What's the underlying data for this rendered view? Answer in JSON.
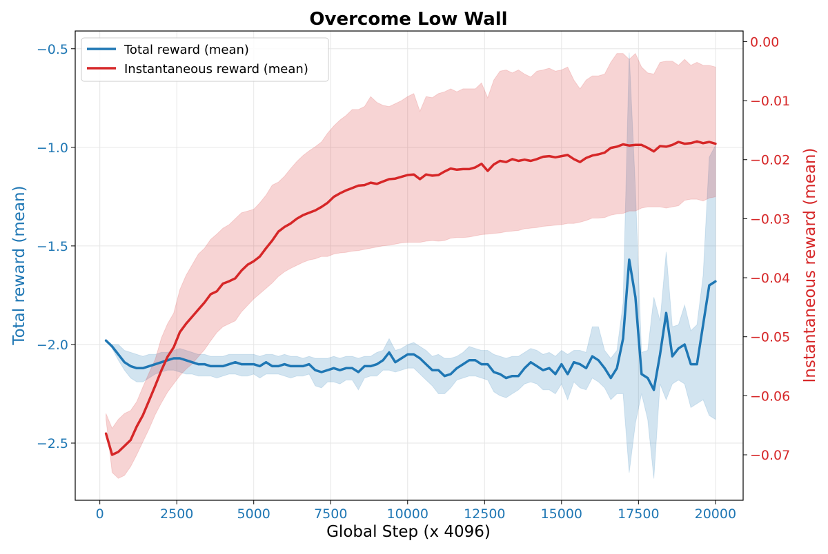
{
  "chart_data": {
    "type": "line",
    "title": "Overcome Low Wall",
    "xlabel": "Global Step (x 4096)",
    "ylabel_left": "Total reward (mean)",
    "ylabel_right": "Instantaneous reward (mean)",
    "xlim": [
      -800,
      20900
    ],
    "ylim_left": [
      -2.79,
      -0.41
    ],
    "ylim_right": [
      -0.0777,
      0.0018
    ],
    "x_ticks": [
      0,
      2500,
      5000,
      7500,
      10000,
      12500,
      15000,
      17500,
      20000
    ],
    "x_tick_labels": [
      "0",
      "2500",
      "5000",
      "7500",
      "10000",
      "12500",
      "15000",
      "17500",
      "20000"
    ],
    "y_ticks_left": [
      -0.5,
      -1.0,
      -1.5,
      -2.0,
      -2.5
    ],
    "y_tick_labels_left": [
      "−0.5",
      "−1.0",
      "−1.5",
      "−2.0",
      "−2.5"
    ],
    "y_ticks_right": [
      0.0,
      -0.01,
      -0.02,
      -0.03,
      -0.04,
      -0.05,
      -0.06,
      -0.07
    ],
    "y_tick_labels_right": [
      "0.00",
      "−0.01",
      "−0.02",
      "−0.03",
      "−0.04",
      "−0.05",
      "−0.06",
      "−0.07"
    ],
    "grid": true,
    "legend_position": "top-left",
    "colors": {
      "total": "#1f77b4",
      "instant": "#d62728"
    },
    "series": [
      {
        "name": "Total reward (mean)",
        "axis": "left",
        "x": [
          200,
          400,
          600,
          800,
          1000,
          1200,
          1400,
          1600,
          1800,
          2000,
          2200,
          2400,
          2600,
          2800,
          3000,
          3200,
          3400,
          3600,
          3800,
          4000,
          4200,
          4400,
          4600,
          4800,
          5000,
          5200,
          5400,
          5600,
          5800,
          6000,
          6200,
          6400,
          6600,
          6800,
          7000,
          7200,
          7400,
          7600,
          7800,
          8000,
          8200,
          8400,
          8600,
          8800,
          9000,
          9200,
          9400,
          9600,
          9800,
          10000,
          10200,
          10400,
          10600,
          10800,
          11000,
          11200,
          11400,
          11600,
          11800,
          12000,
          12200,
          12400,
          12600,
          12800,
          13000,
          13200,
          13400,
          13600,
          13800,
          14000,
          14200,
          14400,
          14600,
          14800,
          15000,
          15200,
          15400,
          15600,
          15800,
          16000,
          16200,
          16400,
          16600,
          16800,
          17000,
          17200,
          17400,
          17600,
          17800,
          18000,
          18200,
          18400,
          18600,
          18800,
          19000,
          19200,
          19400,
          19600,
          19800,
          20000
        ],
        "values": [
          -1.98,
          -2.01,
          -2.05,
          -2.09,
          -2.11,
          -2.12,
          -2.12,
          -2.11,
          -2.1,
          -2.09,
          -2.08,
          -2.07,
          -2.07,
          -2.08,
          -2.09,
          -2.1,
          -2.1,
          -2.11,
          -2.11,
          -2.11,
          -2.1,
          -2.09,
          -2.1,
          -2.1,
          -2.1,
          -2.11,
          -2.09,
          -2.11,
          -2.11,
          -2.1,
          -2.11,
          -2.11,
          -2.11,
          -2.1,
          -2.13,
          -2.14,
          -2.13,
          -2.12,
          -2.13,
          -2.12,
          -2.12,
          -2.14,
          -2.11,
          -2.11,
          -2.1,
          -2.08,
          -2.04,
          -2.09,
          -2.07,
          -2.05,
          -2.05,
          -2.07,
          -2.1,
          -2.13,
          -2.13,
          -2.16,
          -2.15,
          -2.12,
          -2.1,
          -2.08,
          -2.08,
          -2.1,
          -2.1,
          -2.14,
          -2.15,
          -2.17,
          -2.16,
          -2.16,
          -2.12,
          -2.09,
          -2.11,
          -2.13,
          -2.12,
          -2.15,
          -2.1,
          -2.15,
          -2.09,
          -2.1,
          -2.12,
          -2.06,
          -2.08,
          -2.12,
          -2.17,
          -2.12,
          -1.97,
          -1.57,
          -1.76,
          -2.15,
          -2.17,
          -2.23,
          -2.05,
          -1.84,
          -2.06,
          -2.02,
          -2.0,
          -2.1,
          -2.1,
          -1.9,
          -1.7,
          -1.68
        ],
        "lower": [
          -1.98,
          -2.02,
          -2.08,
          -2.13,
          -2.17,
          -2.19,
          -2.19,
          -2.17,
          -2.15,
          -2.14,
          -2.13,
          -2.13,
          -2.14,
          -2.15,
          -2.15,
          -2.16,
          -2.16,
          -2.16,
          -2.17,
          -2.16,
          -2.15,
          -2.15,
          -2.16,
          -2.16,
          -2.15,
          -2.17,
          -2.15,
          -2.15,
          -2.15,
          -2.16,
          -2.17,
          -2.16,
          -2.16,
          -2.15,
          -2.21,
          -2.22,
          -2.19,
          -2.19,
          -2.2,
          -2.18,
          -2.18,
          -2.23,
          -2.17,
          -2.16,
          -2.16,
          -2.13,
          -2.13,
          -2.14,
          -2.13,
          -2.12,
          -2.12,
          -2.15,
          -2.18,
          -2.21,
          -2.25,
          -2.25,
          -2.22,
          -2.18,
          -2.17,
          -2.16,
          -2.16,
          -2.17,
          -2.18,
          -2.24,
          -2.26,
          -2.27,
          -2.25,
          -2.23,
          -2.2,
          -2.19,
          -2.2,
          -2.23,
          -2.23,
          -2.25,
          -2.2,
          -2.28,
          -2.19,
          -2.22,
          -2.23,
          -2.17,
          -2.19,
          -2.22,
          -2.28,
          -2.25,
          -2.25,
          -2.65,
          -2.4,
          -2.25,
          -2.38,
          -2.68,
          -2.2,
          -2.28,
          -2.2,
          -2.18,
          -2.2,
          -2.32,
          -2.3,
          -2.28,
          -2.36,
          -2.38
        ],
        "upper": [
          -1.98,
          -2.0,
          -2.0,
          -2.03,
          -2.04,
          -2.05,
          -2.06,
          -2.05,
          -2.05,
          -2.04,
          -2.04,
          -2.03,
          -2.02,
          -2.03,
          -2.04,
          -2.05,
          -2.05,
          -2.06,
          -2.06,
          -2.06,
          -2.05,
          -2.05,
          -2.05,
          -2.05,
          -2.05,
          -2.06,
          -2.05,
          -2.05,
          -2.06,
          -2.05,
          -2.06,
          -2.06,
          -2.07,
          -2.06,
          -2.07,
          -2.07,
          -2.07,
          -2.06,
          -2.07,
          -2.06,
          -2.06,
          -2.07,
          -2.06,
          -2.06,
          -2.04,
          -2.03,
          -1.97,
          -2.03,
          -2.02,
          -2.0,
          -1.99,
          -2.01,
          -2.03,
          -2.06,
          -2.05,
          -2.07,
          -2.07,
          -2.06,
          -2.04,
          -2.01,
          -2.02,
          -2.03,
          -2.03,
          -2.05,
          -2.06,
          -2.07,
          -2.06,
          -2.06,
          -2.04,
          -2.02,
          -2.03,
          -2.05,
          -2.04,
          -2.06,
          -2.03,
          -2.05,
          -2.03,
          -2.03,
          -2.04,
          -1.91,
          -1.91,
          -2.03,
          -2.07,
          -2.03,
          -1.79,
          -0.52,
          -1.21,
          -2.04,
          -2.03,
          -1.76,
          -1.88,
          -1.53,
          -1.91,
          -1.9,
          -1.8,
          -1.93,
          -1.9,
          -1.65,
          -1.05,
          -0.99
        ]
      },
      {
        "name": "Instantaneous reward (mean)",
        "axis": "right",
        "x": [
          200,
          400,
          600,
          800,
          1000,
          1200,
          1400,
          1600,
          1800,
          2000,
          2200,
          2400,
          2600,
          2800,
          3000,
          3200,
          3400,
          3600,
          3800,
          4000,
          4200,
          4400,
          4600,
          4800,
          5000,
          5200,
          5400,
          5600,
          5800,
          6000,
          6200,
          6400,
          6600,
          6800,
          7000,
          7200,
          7400,
          7600,
          7800,
          8000,
          8200,
          8400,
          8600,
          8800,
          9000,
          9200,
          9400,
          9600,
          9800,
          10000,
          10200,
          10400,
          10600,
          10800,
          11000,
          11200,
          11400,
          11600,
          11800,
          12000,
          12200,
          12400,
          12600,
          12800,
          13000,
          13200,
          13400,
          13600,
          13800,
          14000,
          14200,
          14400,
          14600,
          14800,
          15000,
          15200,
          15400,
          15600,
          15800,
          16000,
          16200,
          16400,
          16600,
          16800,
          17000,
          17200,
          17400,
          17600,
          17800,
          18000,
          18200,
          18400,
          18600,
          18800,
          19000,
          19200,
          19400,
          19600,
          19800,
          20000
        ],
        "values": [
          -0.0664,
          -0.07,
          -0.0695,
          -0.0685,
          -0.0675,
          -0.0652,
          -0.0633,
          -0.0608,
          -0.0583,
          -0.0557,
          -0.0534,
          -0.0518,
          -0.0492,
          -0.0478,
          -0.0466,
          -0.0454,
          -0.0442,
          -0.0428,
          -0.0423,
          -0.041,
          -0.0406,
          -0.0401,
          -0.0388,
          -0.0378,
          -0.0372,
          -0.0364,
          -0.035,
          -0.0337,
          -0.0322,
          -0.0314,
          -0.0308,
          -0.03,
          -0.0294,
          -0.029,
          -0.0286,
          -0.028,
          -0.0273,
          -0.0263,
          -0.0257,
          -0.0252,
          -0.0248,
          -0.0244,
          -0.0243,
          -0.0239,
          -0.0241,
          -0.0237,
          -0.0233,
          -0.0232,
          -0.0229,
          -0.0226,
          -0.0225,
          -0.0233,
          -0.0225,
          -0.0227,
          -0.0226,
          -0.022,
          -0.0215,
          -0.0217,
          -0.0216,
          -0.0216,
          -0.0213,
          -0.0207,
          -0.0219,
          -0.0208,
          -0.0202,
          -0.0204,
          -0.0199,
          -0.0202,
          -0.02,
          -0.0202,
          -0.0199,
          -0.0195,
          -0.0194,
          -0.0196,
          -0.0194,
          -0.0192,
          -0.0199,
          -0.0204,
          -0.0197,
          -0.0193,
          -0.0191,
          -0.0188,
          -0.018,
          -0.0178,
          -0.0174,
          -0.0176,
          -0.0175,
          -0.0175,
          -0.018,
          -0.0186,
          -0.0177,
          -0.0178,
          -0.0175,
          -0.017,
          -0.0173,
          -0.0172,
          -0.0169,
          -0.0172,
          -0.017,
          -0.0173
        ],
        "lower": [
          -0.064,
          -0.073,
          -0.074,
          -0.0735,
          -0.072,
          -0.07,
          -0.0678,
          -0.0656,
          -0.0632,
          -0.0612,
          -0.0594,
          -0.058,
          -0.0566,
          -0.0555,
          -0.0546,
          -0.0534,
          -0.0522,
          -0.0507,
          -0.0493,
          -0.0483,
          -0.0478,
          -0.0473,
          -0.0458,
          -0.0447,
          -0.0436,
          -0.0427,
          -0.0418,
          -0.0409,
          -0.0398,
          -0.039,
          -0.0384,
          -0.0379,
          -0.0374,
          -0.037,
          -0.0368,
          -0.0364,
          -0.0364,
          -0.036,
          -0.0358,
          -0.0357,
          -0.0355,
          -0.0354,
          -0.0352,
          -0.035,
          -0.0348,
          -0.0346,
          -0.0345,
          -0.0343,
          -0.0341,
          -0.034,
          -0.034,
          -0.034,
          -0.0338,
          -0.0337,
          -0.0338,
          -0.0337,
          -0.0333,
          -0.0332,
          -0.0332,
          -0.0331,
          -0.0329,
          -0.0327,
          -0.0326,
          -0.0325,
          -0.0324,
          -0.0322,
          -0.0321,
          -0.032,
          -0.0317,
          -0.0316,
          -0.0315,
          -0.0313,
          -0.0312,
          -0.0311,
          -0.031,
          -0.0308,
          -0.0308,
          -0.0306,
          -0.0303,
          -0.0299,
          -0.0299,
          -0.0298,
          -0.0294,
          -0.0292,
          -0.0291,
          -0.0287,
          -0.0287,
          -0.0282,
          -0.028,
          -0.028,
          -0.028,
          -0.0282,
          -0.028,
          -0.0278,
          -0.0269,
          -0.0267,
          -0.0267,
          -0.027,
          -0.0265,
          -0.0263
        ],
        "upper": [
          -0.063,
          -0.0655,
          -0.064,
          -0.063,
          -0.0625,
          -0.061,
          -0.0585,
          -0.0561,
          -0.0538,
          -0.0502,
          -0.0478,
          -0.046,
          -0.042,
          -0.0396,
          -0.0378,
          -0.036,
          -0.035,
          -0.0335,
          -0.0326,
          -0.0316,
          -0.031,
          -0.03,
          -0.029,
          -0.0287,
          -0.0284,
          -0.0273,
          -0.026,
          -0.0243,
          -0.0238,
          -0.0228,
          -0.0215,
          -0.0203,
          -0.0193,
          -0.0185,
          -0.0178,
          -0.017,
          -0.0155,
          -0.0143,
          -0.0133,
          -0.0125,
          -0.0115,
          -0.0115,
          -0.011,
          -0.0093,
          -0.0103,
          -0.0108,
          -0.011,
          -0.0105,
          -0.01,
          -0.0093,
          -0.0088,
          -0.0118,
          -0.0093,
          -0.0095,
          -0.0088,
          -0.0085,
          -0.008,
          -0.0085,
          -0.008,
          -0.008,
          -0.008,
          -0.007,
          -0.0095,
          -0.0065,
          -0.005,
          -0.0048,
          -0.0053,
          -0.0048,
          -0.0055,
          -0.006,
          -0.005,
          -0.0048,
          -0.0045,
          -0.005,
          -0.0048,
          -0.0043,
          -0.0065,
          -0.008,
          -0.0065,
          -0.0058,
          -0.0058,
          -0.0055,
          -0.0035,
          -0.002,
          -0.002,
          -0.003,
          -0.002,
          -0.0043,
          -0.0053,
          -0.0055,
          -0.0035,
          -0.0033,
          -0.0033,
          -0.004,
          -0.003,
          -0.004,
          -0.0035,
          -0.004,
          -0.004,
          -0.0043
        ]
      }
    ]
  }
}
